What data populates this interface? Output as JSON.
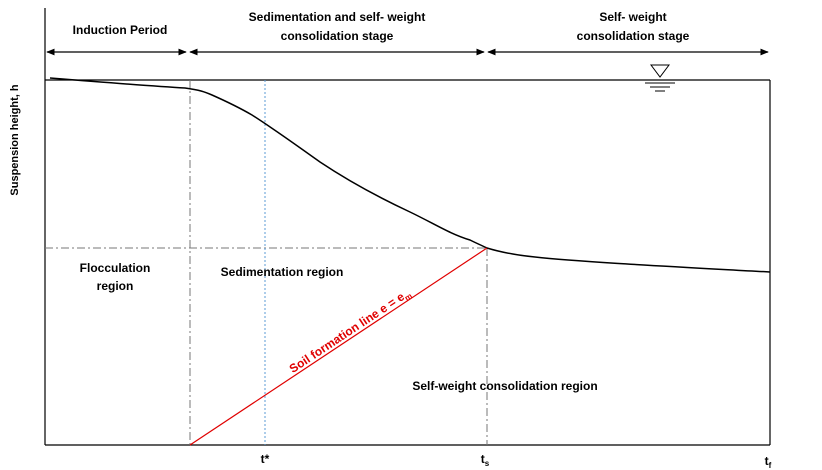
{
  "stages": {
    "induction": "Induction Period",
    "sedimentation": [
      "Sedimentation and self- weight",
      "consolidation stage"
    ],
    "self_weight": [
      "Self- weight",
      "consolidation stage"
    ]
  },
  "y_axis_label": "Suspension height, h",
  "regions": {
    "flocculation": [
      "Flocculation",
      "region"
    ],
    "sedimentation": "Sedimentation region",
    "self_weight": "Self-weight consolidation region"
  },
  "soil_line": {
    "text": "Soil formation line e = e",
    "sub": "m"
  },
  "ticks": {
    "t_star": "t*",
    "t_s": {
      "base": "t",
      "sub": "s"
    },
    "t_f": {
      "base": "t",
      "sub": "f"
    }
  }
}
